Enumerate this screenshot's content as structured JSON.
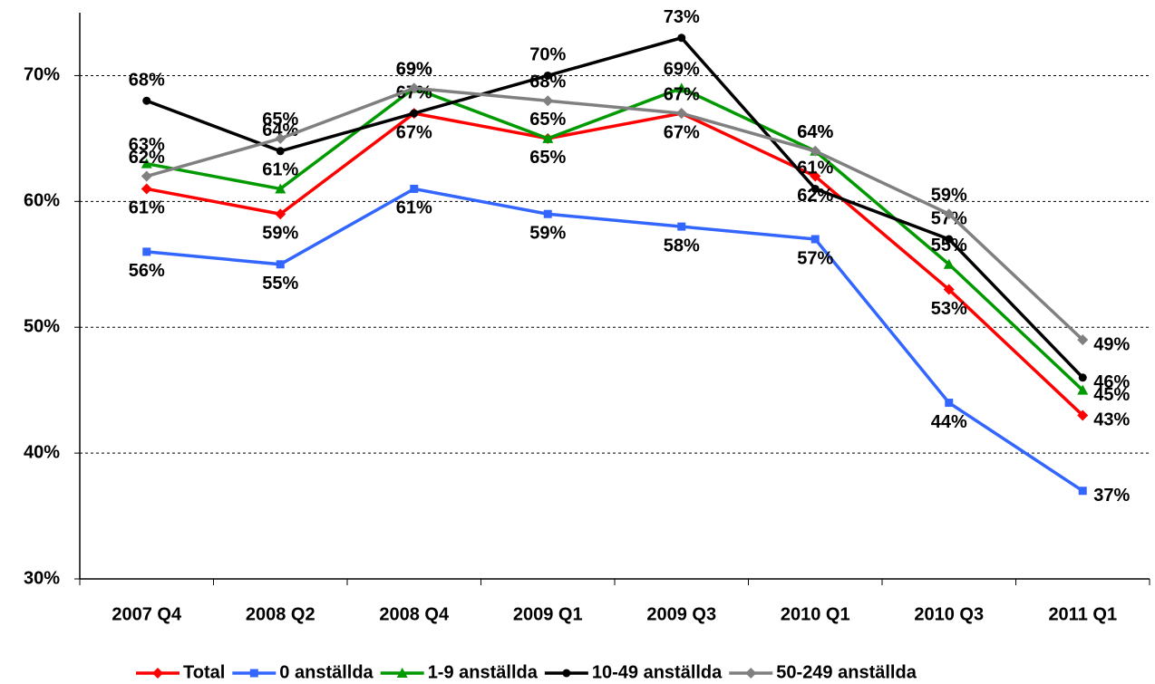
{
  "chart_data": {
    "type": "line",
    "categories": [
      "2007 Q4",
      "2008 Q2",
      "2008 Q4",
      "2009 Q1",
      "2009 Q3",
      "2010 Q1",
      "2010 Q3",
      "2011 Q1"
    ],
    "ylim": [
      30,
      75
    ],
    "yticks": [
      {
        "value": 30,
        "label": "30%"
      },
      {
        "value": 40,
        "label": "40%"
      },
      {
        "value": 50,
        "label": "50%"
      },
      {
        "value": 60,
        "label": "60%"
      },
      {
        "value": 70,
        "label": "70%"
      }
    ],
    "grid": true,
    "legend": "bottom",
    "series": [
      {
        "name": "Total",
        "color": "#ff0000",
        "marker": "diamond",
        "values": [
          61,
          59,
          67,
          65,
          67,
          62,
          53,
          43
        ],
        "value_labels": [
          "61%",
          "59%",
          "67%",
          "65%",
          "67%",
          "62%",
          "53%",
          "43%"
        ]
      },
      {
        "name": "0 anställda",
        "color": "#3366ff",
        "marker": "square",
        "values": [
          56,
          55,
          61,
          59,
          58,
          57,
          44,
          37
        ],
        "value_labels": [
          "56%",
          "55%",
          "61%",
          "59%",
          "58%",
          "57%",
          "44%",
          "37%"
        ]
      },
      {
        "name": "1-9 anställda",
        "color": "#009900",
        "marker": "triangle",
        "values": [
          63,
          61,
          69,
          65,
          69,
          64,
          55,
          45
        ],
        "value_labels": [
          "63%",
          "61%",
          "69%",
          "65%",
          "69%",
          "64%",
          "55%",
          "45%"
        ]
      },
      {
        "name": "10-49 anställda",
        "color": "#000000",
        "marker": "circle",
        "values": [
          68,
          64,
          67,
          70,
          73,
          61,
          57,
          46
        ],
        "value_labels": [
          "68%",
          "64%",
          "67%",
          "70%",
          "73%",
          "61%",
          "57%",
          "46%"
        ]
      },
      {
        "name": "50-249 anställda",
        "color": "#808080",
        "marker": "diamond",
        "values": [
          62,
          65,
          69,
          68,
          67,
          64,
          59,
          49
        ],
        "value_labels": [
          "62%",
          "65%",
          "69%",
          "68%",
          "67%",
          "64%",
          "59%",
          "49%"
        ]
      }
    ]
  }
}
